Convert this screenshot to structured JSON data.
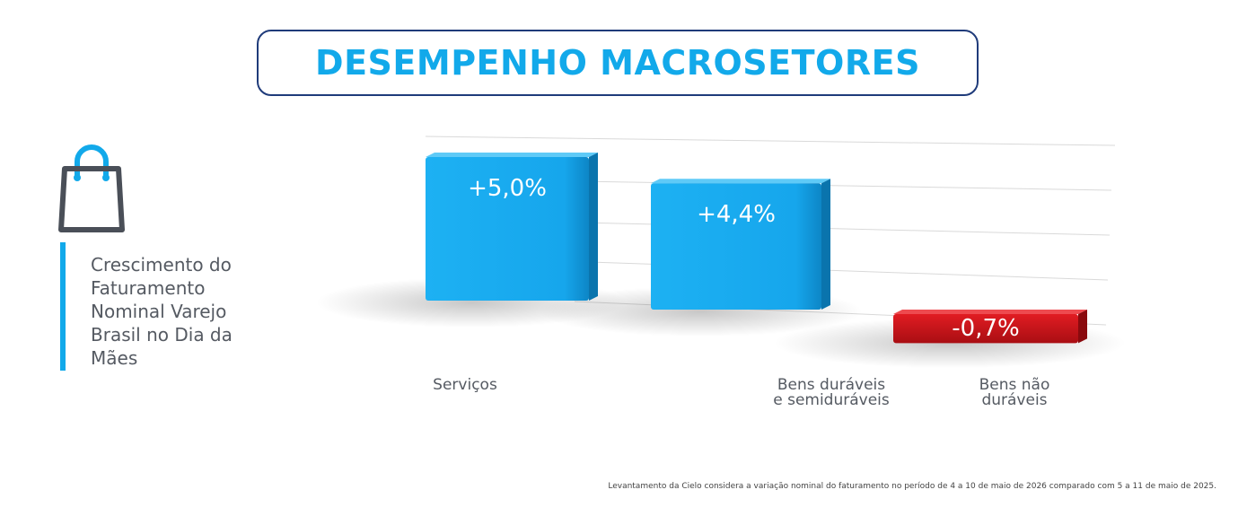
{
  "header": {
    "title": "DESEMPENHO MACROSETORES"
  },
  "sidebar": {
    "icon": "shopping-bag-icon",
    "text": "Crescimento do Faturamento Nominal Varejo Brasil no Dia da Mães"
  },
  "colors": {
    "accent": "#12a9ea",
    "positive": "#18a9f0",
    "negative": "#d0141b",
    "title_border": "#1f3b7a"
  },
  "chart_data": {
    "type": "bar",
    "categories": [
      "Serviços",
      "Bens duráveis e semiduráveis",
      "Bens não duráveis"
    ],
    "values": [
      5.0,
      4.4,
      -0.7
    ],
    "data_labels": [
      "+5,0%",
      "+4,4%",
      "-0,7%"
    ],
    "grid": true,
    "legend": "none"
  },
  "footnote": "Levantamento da Cielo considera a variação nominal do faturamento no período de 4 a 10 de maio de 2026 comparado com 5 a 11 de maio de 2025."
}
